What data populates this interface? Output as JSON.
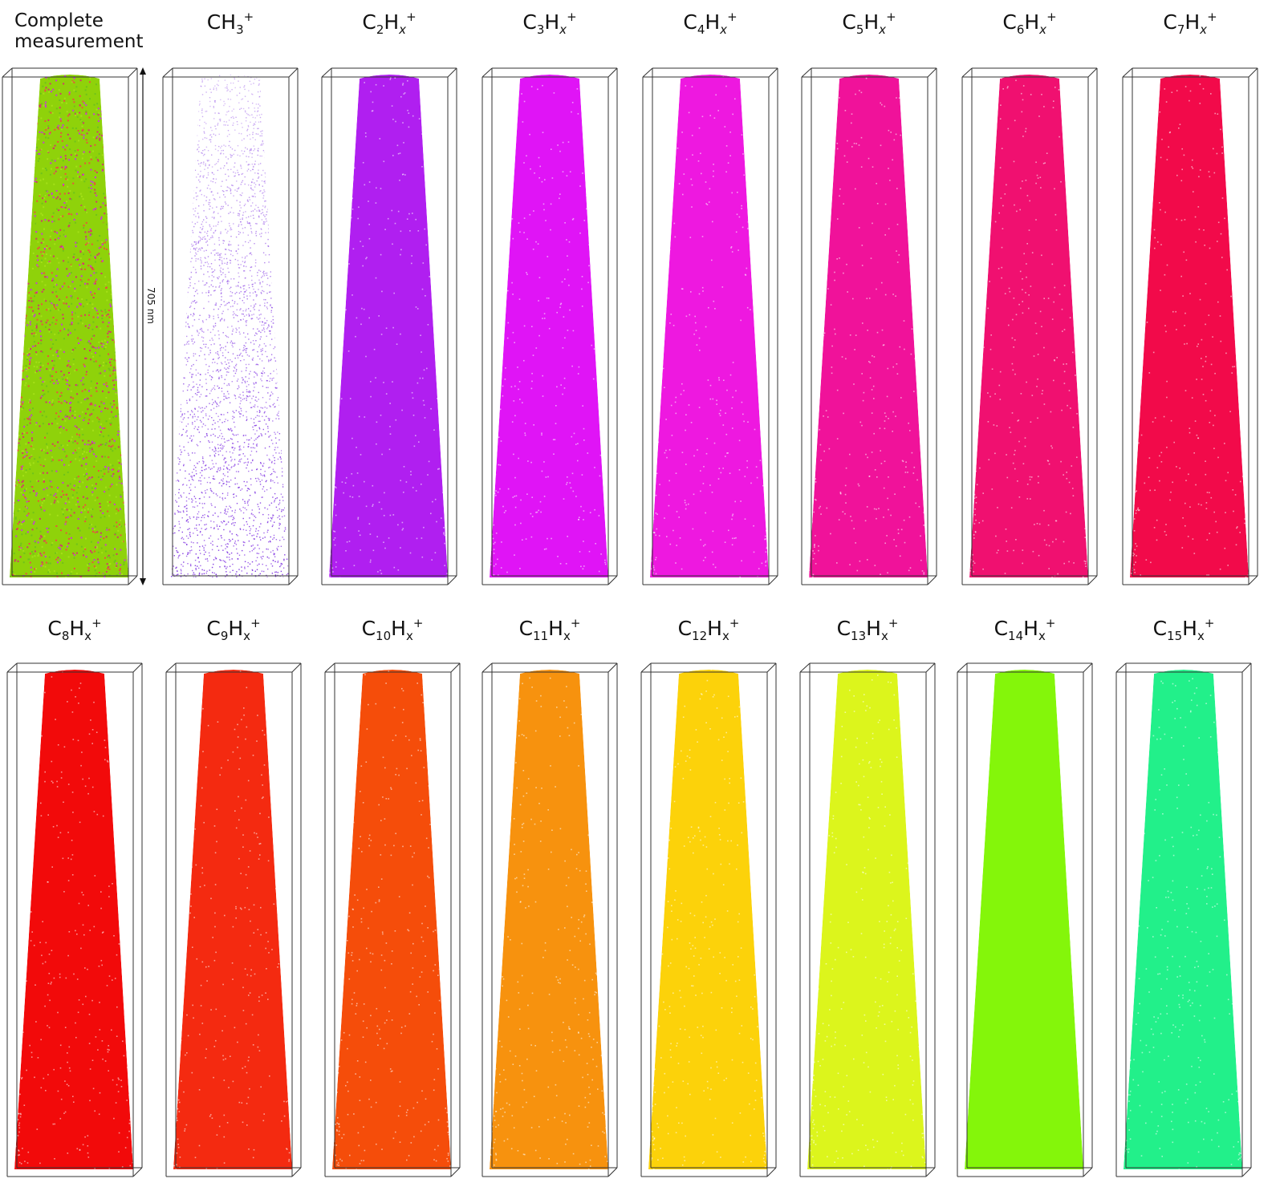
{
  "figure": {
    "scale_bar_label": "705 nm",
    "row1": [
      {
        "id": "complete",
        "title": "Complete\nmeasurement",
        "colors": [
          "#8fd20a",
          "#a4e018",
          "#d23a6a",
          "#c83cd4",
          "#e8553c",
          "#6fc21a"
        ],
        "density": "mixed"
      },
      {
        "id": "ch3",
        "title_parts": [
          [
            "t",
            "CH"
          ],
          [
            "sub",
            "3"
          ],
          [
            "sup",
            "+"
          ]
        ],
        "colors": [
          "#7b2ee0",
          "#9a5ae8"
        ],
        "density": "sparse"
      },
      {
        "id": "c2",
        "title_parts": [
          [
            "t",
            "C"
          ],
          [
            "sub",
            "2"
          ],
          [
            "t",
            "H"
          ],
          [
            "subi",
            "x"
          ],
          [
            "sup",
            "+"
          ]
        ],
        "colors": [
          "#b01ff0",
          "#a414ec"
        ],
        "density": "dense"
      },
      {
        "id": "c3",
        "title_parts": [
          [
            "t",
            "C"
          ],
          [
            "sub",
            "3"
          ],
          [
            "t",
            "H"
          ],
          [
            "subi",
            "x"
          ],
          [
            "sup",
            "+"
          ]
        ],
        "colors": [
          "#e014f6",
          "#d80ff2"
        ],
        "density": "dense"
      },
      {
        "id": "c4",
        "title_parts": [
          [
            "t",
            "C"
          ],
          [
            "sub",
            "4"
          ],
          [
            "t",
            "H"
          ],
          [
            "subi",
            "x"
          ],
          [
            "sup",
            "+"
          ]
        ],
        "colors": [
          "#ee18e0",
          "#e612d8"
        ],
        "density": "dense"
      },
      {
        "id": "c5",
        "title_parts": [
          [
            "t",
            "C"
          ],
          [
            "sub",
            "5"
          ],
          [
            "t",
            "H"
          ],
          [
            "subi",
            "x"
          ],
          [
            "sup",
            "+"
          ]
        ],
        "colors": [
          "#f0129a",
          "#e8108e"
        ],
        "density": "dense"
      },
      {
        "id": "c6",
        "title_parts": [
          [
            "t",
            "C"
          ],
          [
            "sub",
            "6"
          ],
          [
            "t",
            "H"
          ],
          [
            "subi",
            "x"
          ],
          [
            "sup",
            "+"
          ]
        ],
        "colors": [
          "#f01070",
          "#e60a66"
        ],
        "density": "dense"
      },
      {
        "id": "c7",
        "title_parts": [
          [
            "t",
            "C"
          ],
          [
            "sub",
            "7"
          ],
          [
            "t",
            "H"
          ],
          [
            "subi",
            "x"
          ],
          [
            "sup",
            "+"
          ]
        ],
        "colors": [
          "#f20a4a",
          "#e80640"
        ],
        "density": "dense"
      }
    ],
    "row2": [
      {
        "id": "c8",
        "title_parts": [
          [
            "t",
            "C"
          ],
          [
            "sub",
            "8"
          ],
          [
            "t",
            "H"
          ],
          [
            "sub",
            "x"
          ],
          [
            "sup",
            "+"
          ]
        ],
        "colors": [
          "#f20a0a",
          "#e60606"
        ],
        "density": "dense"
      },
      {
        "id": "c9",
        "title_parts": [
          [
            "t",
            "C"
          ],
          [
            "sub",
            "9"
          ],
          [
            "t",
            "H"
          ],
          [
            "sub",
            "x"
          ],
          [
            "sup",
            "+"
          ]
        ],
        "colors": [
          "#f42a10",
          "#ea2208"
        ],
        "density": "dense"
      },
      {
        "id": "c10",
        "title_parts": [
          [
            "t",
            "C"
          ],
          [
            "sub",
            "10"
          ],
          [
            "t",
            "H"
          ],
          [
            "sub",
            "x"
          ],
          [
            "sup",
            "+"
          ]
        ],
        "colors": [
          "#f54d0a",
          "#ec4506"
        ],
        "density": "dense"
      },
      {
        "id": "c11",
        "title_parts": [
          [
            "t",
            "C"
          ],
          [
            "sub",
            "11"
          ],
          [
            "t",
            "H"
          ],
          [
            "sub",
            "x"
          ],
          [
            "sup",
            "+"
          ]
        ],
        "colors": [
          "#f7920e",
          "#f08808"
        ],
        "density": "dense"
      },
      {
        "id": "c12",
        "title_parts": [
          [
            "t",
            "C"
          ],
          [
            "sub",
            "12"
          ],
          [
            "t",
            "H"
          ],
          [
            "sub",
            "x"
          ],
          [
            "sup",
            "+"
          ]
        ],
        "colors": [
          "#fcd20a",
          "#f6c806"
        ],
        "density": "dense"
      },
      {
        "id": "c13",
        "title_parts": [
          [
            "t",
            "C"
          ],
          [
            "sub",
            "13"
          ],
          [
            "t",
            "H"
          ],
          [
            "sub",
            "x"
          ],
          [
            "sup",
            "+"
          ]
        ],
        "colors": [
          "#dcf51c",
          "#d2ee12"
        ],
        "density": "dense"
      },
      {
        "id": "c14",
        "title_parts": [
          [
            "t",
            "C"
          ],
          [
            "sub",
            "14"
          ],
          [
            "t",
            "H"
          ],
          [
            "sub",
            "x"
          ],
          [
            "sup",
            "+"
          ]
        ],
        "colors": [
          "#84f60a",
          "#7cf006"
        ],
        "density": "solid"
      },
      {
        "id": "c15",
        "title_parts": [
          [
            "t",
            "C"
          ],
          [
            "sub",
            "15"
          ],
          [
            "t",
            "H"
          ],
          [
            "sub",
            "x"
          ],
          [
            "sup",
            "+"
          ]
        ],
        "colors": [
          "#22f08a",
          "#18e67e"
        ],
        "density": "dense"
      }
    ]
  }
}
